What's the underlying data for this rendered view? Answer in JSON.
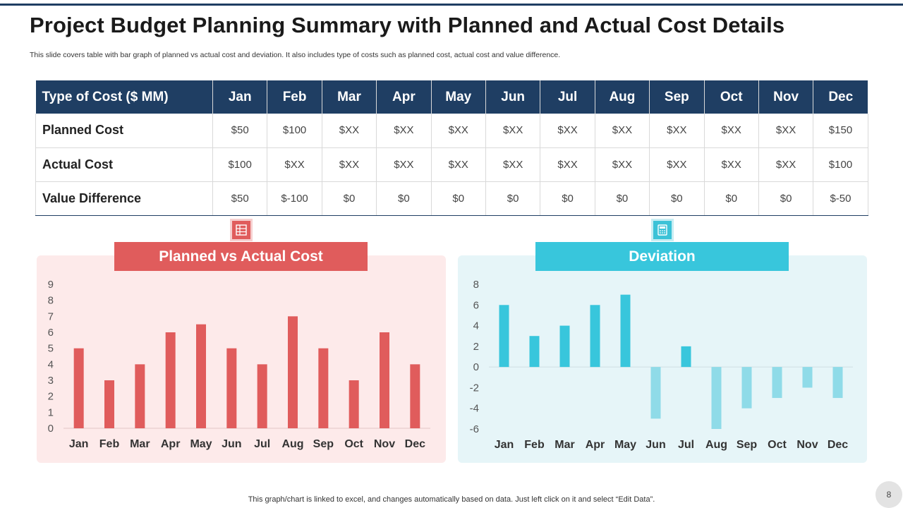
{
  "title": "Project Budget Planning Summary with Planned and Actual Cost Details",
  "subtitle": "This slide covers table with bar graph of planned vs actual cost and deviation. It also includes type of costs such as planned cost, actual cost and value difference.",
  "table": {
    "header_label": "Type of Cost ($ MM)",
    "months": [
      "Jan",
      "Feb",
      "Mar",
      "Apr",
      "May",
      "Jun",
      "Jul",
      "Aug",
      "Sep",
      "Oct",
      "Nov",
      "Dec"
    ],
    "rows": [
      {
        "label": "Planned Cost",
        "values": [
          "$50",
          "$100",
          "$XX",
          "$XX",
          "$XX",
          "$XX",
          "$XX",
          "$XX",
          "$XX",
          "$XX",
          "$XX",
          "$150"
        ]
      },
      {
        "label": "Actual Cost",
        "values": [
          "$100",
          "$XX",
          "$XX",
          "$XX",
          "$XX",
          "$XX",
          "$XX",
          "$XX",
          "$XX",
          "$XX",
          "$XX",
          "$100"
        ]
      },
      {
        "label": "Value Difference",
        "values": [
          "$50",
          "$-100",
          "$0",
          "$0",
          "$0",
          "$0",
          "$0",
          "$0",
          "$0",
          "$0",
          "$0",
          "$-50"
        ]
      }
    ]
  },
  "banners": {
    "left": "Planned vs Actual Cost",
    "right": "Deviation"
  },
  "icons": {
    "left": "spreadsheet-icon",
    "right": "calculator-icon"
  },
  "colors": {
    "navy": "#1f3e63",
    "red": "#e05c5c",
    "teal": "#38c6dc",
    "teal_light": "#8fdbe8"
  },
  "chart_data": [
    {
      "type": "bar",
      "title": "Planned vs Actual Cost",
      "categories": [
        "Jan",
        "Feb",
        "Mar",
        "Apr",
        "May",
        "Jun",
        "Jul",
        "Aug",
        "Sep",
        "Oct",
        "Nov",
        "Dec"
      ],
      "values": [
        5,
        3,
        4,
        6,
        6.5,
        5,
        4,
        7,
        5,
        3,
        6,
        4
      ],
      "ylim": [
        0,
        9
      ],
      "yticks": [
        0,
        1,
        2,
        3,
        4,
        5,
        6,
        7,
        8,
        9
      ],
      "xlabel": "",
      "ylabel": "",
      "grid": false
    },
    {
      "type": "bar",
      "title": "Deviation",
      "categories": [
        "Jan",
        "Feb",
        "Mar",
        "Apr",
        "May",
        "Jun",
        "Jul",
        "Aug",
        "Sep",
        "Oct",
        "Nov",
        "Dec"
      ],
      "values": [
        6,
        3,
        4,
        6,
        7,
        -5,
        2,
        -6,
        -4,
        -3,
        -2,
        -3
      ],
      "ylim": [
        -6,
        8
      ],
      "yticks": [
        -6,
        -4,
        -2,
        0,
        2,
        4,
        6,
        8
      ],
      "xlabel": "",
      "ylabel": "",
      "grid": false
    }
  ],
  "footer_note": "This graph/chart is linked to excel,  and changes automatically based on data. Just left click on it and select “Edit Data”.",
  "page_number": "8"
}
